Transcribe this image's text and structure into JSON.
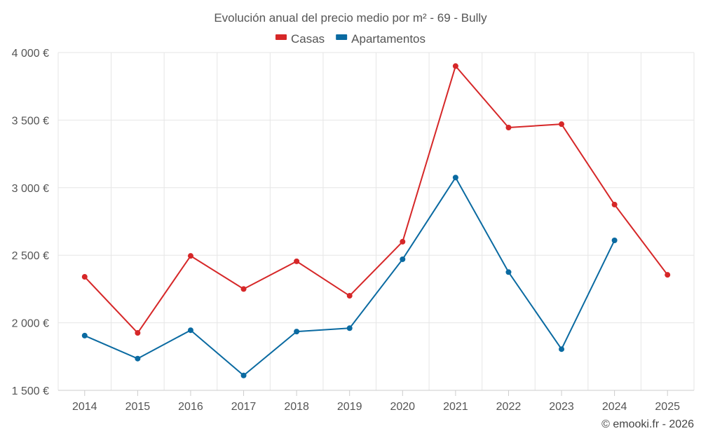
{
  "chart_data": {
    "type": "line",
    "title": "Evolución anual del precio medio por m² - 69 - Bully",
    "categories": [
      "2014",
      "2015",
      "2016",
      "2017",
      "2018",
      "2019",
      "2020",
      "2021",
      "2022",
      "2023",
      "2024",
      "2025"
    ],
    "series": [
      {
        "name": "Casas",
        "color": "#d62728",
        "values": [
          2340,
          1925,
          2495,
          2250,
          2455,
          2200,
          2600,
          3900,
          3445,
          3470,
          2875,
          2355
        ]
      },
      {
        "name": "Apartamentos",
        "color": "#0a6aa1",
        "values": [
          1905,
          1735,
          1945,
          1610,
          1935,
          1960,
          2470,
          3075,
          2375,
          1805,
          2610,
          null
        ]
      }
    ],
    "ylim": [
      1500,
      4000
    ],
    "yticks": [
      1500,
      2000,
      2500,
      3000,
      3500,
      4000
    ],
    "ytick_labels": [
      "1 500 €",
      "2 000 €",
      "2 500 €",
      "3 000 €",
      "3 500 €",
      "4 000 €"
    ],
    "xlabel": "",
    "ylabel": "",
    "legend_position": "top-center",
    "grid": true
  },
  "credit": "© emooki.fr - 2026"
}
